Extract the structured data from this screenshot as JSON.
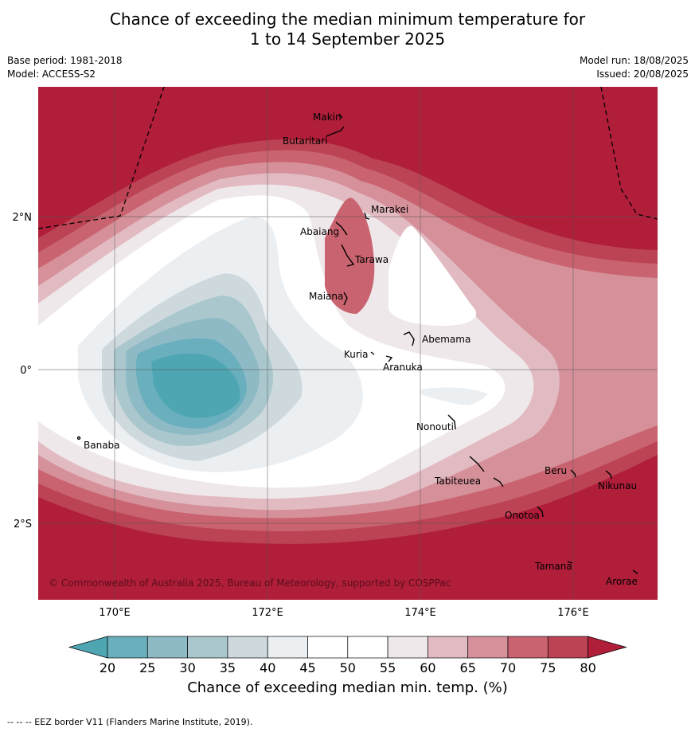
{
  "title_line1": "Chance of exceeding the median minimum temperature for",
  "title_line2": "1 to 14 September 2025",
  "base_period": "Base period: 1981-2018",
  "model": "Model: ACCESS-S2",
  "model_run": "Model run: 18/08/2025",
  "issued": "Issued: 20/08/2025",
  "copyright": "© Commonwealth of Australia 2025, Bureau of Meteorology, supported by COSPPac",
  "lon_ticks": [
    "170°E",
    "172°E",
    "174°E",
    "176°E"
  ],
  "lat_ticks": [
    "2°N",
    "0°",
    "2°S"
  ],
  "islands": [
    "Makin",
    "Butaritari",
    "Marakei",
    "Abaiang",
    "Tarawa",
    "Maiana",
    "Abemama",
    "Kuria",
    "Aranuka",
    "Nonouti",
    "Banaba",
    "Tabiteuea",
    "Beru",
    "Nikunau",
    "Onotoa",
    "Tamana",
    "Arorae"
  ],
  "colorbar": {
    "ticks": [
      "20",
      "25",
      "30",
      "35",
      "40",
      "45",
      "50",
      "55",
      "60",
      "65",
      "70",
      "75",
      "80"
    ],
    "colors": [
      "#4ea6b3",
      "#6aafbd",
      "#8ebac6",
      "#aac7cd",
      "#ced9de",
      "#ebeff2",
      "#ffffff",
      "#ffffff",
      "#efe8ea",
      "#e2bbc2",
      "#d5909a",
      "#c9636f",
      "#bb4353",
      "#b01e3a"
    ],
    "label": "Chance of exceeding median min. temp. (%)"
  },
  "footer": "--  --  -- EEZ border V11 (Flanders Marine Institute, 2019)."
}
